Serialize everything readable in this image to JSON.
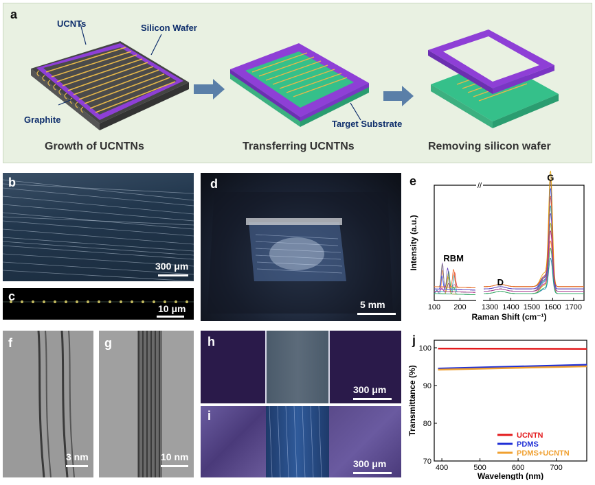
{
  "panel_a": {
    "label": "a",
    "callouts": {
      "ucnts": "UCNTs",
      "silicon_wafer": "Silicon Wafer",
      "graphite": "Graphite",
      "target_substrate": "Target Substrate"
    },
    "steps": [
      "Growth of UCNTNs",
      "Transferring UCNTNs",
      "Removing silicon wafer"
    ],
    "colors": {
      "wafer": "#8e3fd6",
      "substrate": "#35c08a",
      "tubes": "#e7b84a",
      "background": "#eaf2e4"
    }
  },
  "panel_b": {
    "label": "b",
    "scale": "300 μm"
  },
  "panel_c": {
    "label": "c",
    "scale": "10 μm"
  },
  "panel_d": {
    "label": "d",
    "scale": "5 mm"
  },
  "panel_f": {
    "label": "f",
    "scale": "3 nm"
  },
  "panel_g": {
    "label": "g",
    "scale": "10 nm"
  },
  "panel_h": {
    "label": "h",
    "scale": "300 μm"
  },
  "panel_i": {
    "label": "i",
    "scale": "300 μm"
  },
  "panel_e_label": "e",
  "panel_j_label": "j",
  "chart_data": [
    {
      "panel": "e",
      "type": "line",
      "title": "",
      "xlabel": "Raman Shift (cm⁻¹)",
      "ylabel": "Intensity (a.u.)",
      "x_ticks_left": [
        100,
        200
      ],
      "x_ticks_right": [
        1300,
        1400,
        1500,
        1600,
        1700
      ],
      "xlim_left": [
        100,
        260
      ],
      "xlim_right": [
        1270,
        1750
      ],
      "axis_break": true,
      "annotations": [
        {
          "text": "RBM",
          "x": 175
        },
        {
          "text": "D",
          "x": 1350
        },
        {
          "text": "G",
          "x": 1590
        }
      ],
      "peaks": [
        {
          "x": 175,
          "max_height": 0.27
        },
        {
          "x": 115,
          "max_height": 0.22
        },
        {
          "x": 1590,
          "max_height": 0.98
        },
        {
          "x": 1350,
          "max_height": 0.02
        }
      ],
      "series_count": 16
    },
    {
      "panel": "j",
      "type": "line",
      "title": "",
      "xlabel": "Wavelength (nm)",
      "ylabel": "Transmittance (%)",
      "xlim": [
        380,
        780
      ],
      "ylim": [
        70,
        102
      ],
      "x_ticks": [
        400,
        500,
        600,
        700
      ],
      "y_ticks": [
        70,
        80,
        90,
        100
      ],
      "legend_position": "bottom-right",
      "series": [
        {
          "name": "UCNTN",
          "color": "#e31a1c",
          "x": [
            390,
            780
          ],
          "values": [
            99.8,
            99.7
          ]
        },
        {
          "name": "PDMS",
          "color": "#1f2fd6",
          "x": [
            390,
            780
          ],
          "values": [
            94.5,
            95.5
          ]
        },
        {
          "name": "PDMS+UCNTN",
          "color": "#f0a030",
          "x": [
            390,
            780
          ],
          "values": [
            94.2,
            95.1
          ]
        }
      ]
    }
  ]
}
